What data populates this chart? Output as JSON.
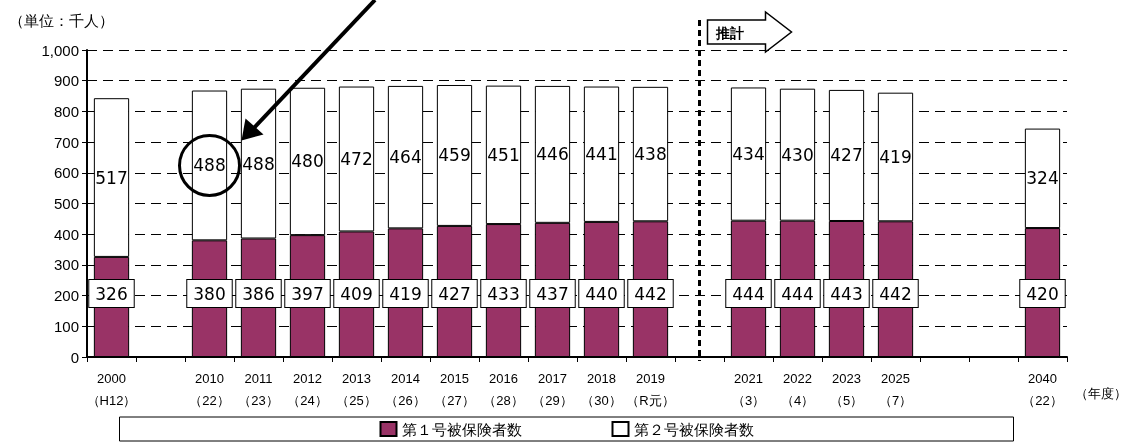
{
  "chart_data": {
    "type": "bar",
    "stacked": true,
    "title": "（単位：千人）",
    "xlabel": "（年度）",
    "categories": [
      "2000\n（H12）",
      null,
      "2010\n（22）",
      "2011\n（23）",
      "2012\n（24）",
      "2013\n（25）",
      "2014\n（26）",
      "2015\n（27）",
      "2016\n（28）",
      "2017\n（29）",
      "2018\n（30）",
      "2019\n（R元）",
      null,
      "2021\n（3）",
      "2022\n（4）",
      "2023\n（5）",
      "2025\n（7）",
      null,
      null,
      "2040\n（22）"
    ],
    "series": [
      {
        "name": "第１号被保険者数",
        "color": "#993366",
        "values": [
          326,
          null,
          380,
          386,
          397,
          409,
          419,
          427,
          433,
          437,
          440,
          442,
          null,
          444,
          444,
          443,
          442,
          null,
          null,
          420
        ]
      },
      {
        "name": "第２号被保険者数",
        "color": "#ffffff",
        "values": [
          517,
          null,
          488,
          488,
          480,
          472,
          464,
          459,
          451,
          446,
          441,
          438,
          null,
          434,
          430,
          427,
          419,
          null,
          null,
          324
        ]
      }
    ],
    "ylim": [
      0,
      1000
    ],
    "yticks": [
      0,
      100,
      200,
      300,
      400,
      500,
      600,
      700,
      800,
      900,
      {
        "value": 1000,
        "label": "1,000"
      }
    ],
    "grid": "y",
    "legend": "bottom",
    "data_labels": true,
    "annotations": [
      "推計"
    ]
  }
}
